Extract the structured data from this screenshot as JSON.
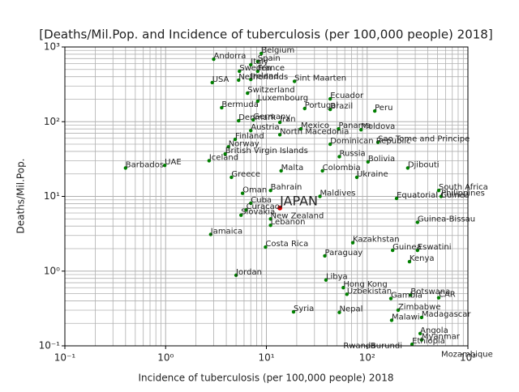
{
  "chart_data": {
    "type": "scatter",
    "title": "[Deaths/Mil.Pop. and Incidence of tuberculosis (per 100,000 people) 2018]",
    "x_label": "Incidence of tuberculosis (per 100,000 people) 2018",
    "y_label": "Deaths/Mil.Pop.",
    "log_x": true,
    "log_y": true,
    "grid": true,
    "color": "#008000",
    "labels": [
      "Belgium",
      "Andorra",
      "Spain",
      "Italy",
      "Sweden",
      "France",
      "Netherlands",
      "USA",
      "Ireland",
      "Sint Maarten",
      "Switzerland",
      "Luxembourg",
      "Ecuador",
      "Portugal",
      "Brazil",
      "Peru",
      "Bermuda",
      "Denmark",
      "Germany",
      "Iran",
      "Austria",
      "Mexico",
      "Panama",
      "Moldova",
      "North Macedonia",
      "Finland",
      "Sao Tome and Principe",
      "Norway",
      "Dominican Republic",
      "British Virgin Islands",
      "Russia",
      "Barbados",
      "UAE",
      "Iceland",
      "Bolivia",
      "Djibouti",
      "Malta",
      "Colombia",
      "Greece",
      "Ukraine",
      "South Africa",
      "Philippines",
      "Oman",
      "Bahrain",
      "Maldives",
      "Cuba",
      "Equatorial Guinea",
      "Curacao",
      "Slovakia",
      "New Zealand",
      "Lebanon",
      "Jamaica",
      "Guinea-Bissau",
      "Costa Rica",
      "Eswatini",
      "Paraguay",
      "Kazakhstan",
      "Guinea",
      "Kenya",
      "Jordan",
      "Libya",
      "Hong Kong",
      "Uzbekistan",
      "Gambia",
      "Botswana",
      "CAR",
      "Zimbabwe",
      "Madagascar",
      "Syria",
      "Nepal",
      "Malawi",
      "Angola",
      "Myanmar",
      "Ethiopia",
      "Rwanda",
      "Burundi",
      "Mozambique"
    ],
    "x": [
      8.9,
      3.0,
      8.2,
      7.0,
      5.4,
      8.2,
      5.3,
      2.9,
      7.0,
      19,
      6.5,
      8.2,
      43,
      24,
      43,
      119,
      3.6,
      5.3,
      7.4,
      13.6,
      7.0,
      22,
      52,
      87,
      13.6,
      4.9,
      128,
      4.2,
      43,
      3.9,
      53,
      0.4,
      0.98,
      2.7,
      102,
      253,
      14,
      36,
      4.5,
      79,
      513,
      542,
      5.8,
      11,
      34,
      7,
      196,
      6.3,
      5.6,
      11,
      11,
      2.8,
      316,
      9.8,
      316,
      38,
      72,
      179,
      263,
      5.0,
      39,
      58,
      63,
      172,
      270,
      513,
      203,
      347,
      18.6,
      53,
      175,
      336,
      347,
      279,
      58,
      108,
      542
    ],
    "values": [
      818,
      687,
      638,
      578,
      473,
      473,
      360,
      334,
      368,
      347,
      241,
      188,
      202,
      150,
      146,
      139,
      154,
      103,
      106,
      98,
      76,
      80,
      80,
      78,
      67,
      58,
      53,
      46,
      50,
      37,
      34,
      24,
      26,
      30,
      29,
      24,
      22,
      22,
      18,
      18,
      12,
      10,
      11,
      12,
      10,
      8.1,
      9.4,
      6.6,
      5.6,
      5.0,
      4.1,
      3.1,
      4.5,
      2.1,
      1.9,
      1.6,
      2.4,
      1.9,
      1.34,
      0.88,
      0.76,
      0.6,
      0.49,
      0.43,
      0.48,
      0.44,
      0.3,
      0.24,
      0.285,
      0.28,
      0.22,
      0.146,
      0.12,
      0.105,
      0.09,
      0.09,
      0.07
    ],
    "highlight": {
      "label": "JAPAN",
      "x": 13.6,
      "value": 7.0,
      "color": "#e00000"
    },
    "xlim": [
      0.1,
      1000
    ],
    "ylim": [
      0.1,
      1000
    ],
    "xticks": [
      {
        "value": 0.1,
        "label": "10⁻¹"
      },
      {
        "value": 1,
        "label": "10⁰"
      },
      {
        "value": 10,
        "label": "10¹"
      },
      {
        "value": 100,
        "label": "10²"
      },
      {
        "value": 1000,
        "label": "10³"
      }
    ],
    "yticks": [
      {
        "value": 0.1,
        "label": "10⁻¹"
      },
      {
        "value": 1,
        "label": "10⁰"
      },
      {
        "value": 10,
        "label": "10¹"
      },
      {
        "value": 100,
        "label": "10²"
      },
      {
        "value": 1000,
        "label": "10³"
      }
    ],
    "minor_ticks": [
      0.2,
      0.3,
      0.4,
      0.5,
      0.6,
      0.7,
      0.8,
      0.9,
      2,
      3,
      4,
      5,
      6,
      7,
      8,
      9,
      20,
      30,
      40,
      50,
      60,
      70,
      80,
      90,
      200,
      300,
      400,
      500,
      600,
      700,
      800,
      900
    ]
  }
}
